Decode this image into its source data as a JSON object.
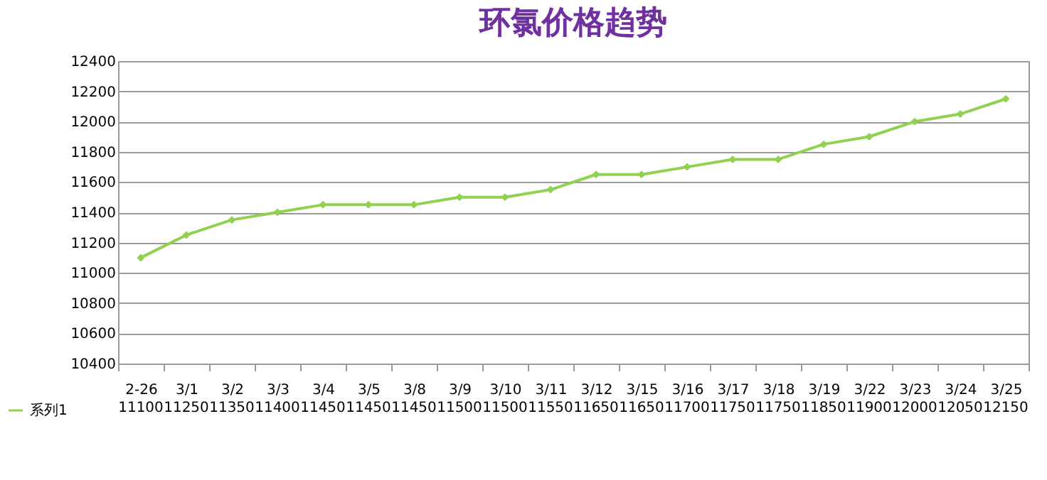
{
  "chart_data": {
    "type": "line",
    "title": "环氯价格趋势",
    "categories": [
      "2-26",
      "3/1",
      "3/2",
      "3/3",
      "3/4",
      "3/5",
      "3/8",
      "3/9",
      "3/10",
      "3/11",
      "3/12",
      "3/15",
      "3/16",
      "3/17",
      "3/18",
      "3/19",
      "3/22",
      "3/23",
      "3/24",
      "3/25"
    ],
    "series": [
      {
        "name": "系列1",
        "color": "#92d050",
        "values": [
          11100,
          11250,
          11350,
          11400,
          11450,
          11450,
          11450,
          11500,
          11500,
          11550,
          11650,
          11650,
          11700,
          11750,
          11750,
          11850,
          11900,
          12000,
          12050,
          12150
        ]
      }
    ],
    "ylim": [
      10400,
      12400
    ],
    "yticks": [
      10400,
      10600,
      10800,
      11000,
      11200,
      11400,
      11600,
      11800,
      12000,
      12200,
      12400
    ],
    "grid": "y",
    "legend": "bottom left",
    "marker": "diamond",
    "data_labels": true
  }
}
